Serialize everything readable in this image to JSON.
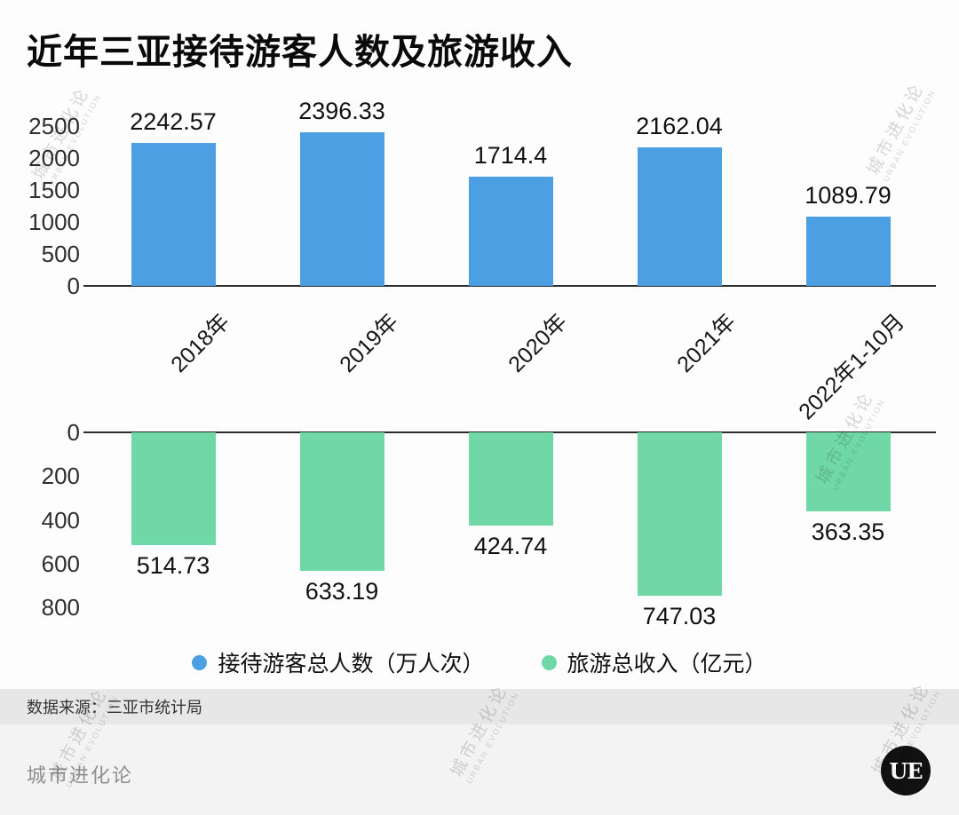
{
  "chart_data": {
    "type": "bar",
    "title": "近年三亚接待游客人数及旅游收入",
    "categories": [
      "2018年",
      "2019年",
      "2020年",
      "2021年",
      "2022年1-10月"
    ],
    "series": [
      {
        "name": "接待游客总人数（万人次）",
        "color": "#4C9FE3",
        "values": [
          2242.57,
          2396.33,
          1714.4,
          2162.04,
          1089.79
        ],
        "value_labels": [
          "2242.57",
          "2396.33",
          "1714.4",
          "2162.04",
          "1089.79"
        ],
        "direction": "up",
        "ylim": [
          0,
          2500
        ],
        "ticks": [
          0,
          500,
          1000,
          1500,
          2000,
          2500
        ]
      },
      {
        "name": "旅游总收入（亿元）",
        "color": "#70D8A6",
        "values": [
          514.73,
          633.19,
          424.74,
          747.03,
          363.35
        ],
        "value_labels": [
          "514.73",
          "633.19",
          "424.74",
          "747.03",
          "363.35"
        ],
        "direction": "down",
        "ylim": [
          0,
          800
        ],
        "ticks": [
          0,
          200,
          400,
          600,
          800
        ]
      }
    ],
    "legend_position": "bottom",
    "grid": false
  },
  "source": "数据来源：三亚市统计局",
  "footer": {
    "brand": "城市进化论",
    "logo_text": "UE"
  },
  "watermark": {
    "cn": "城市进化论",
    "en": "URBAN EVOLUTION"
  },
  "colors": {
    "blue": "#4C9FE3",
    "green": "#70D8A6"
  }
}
